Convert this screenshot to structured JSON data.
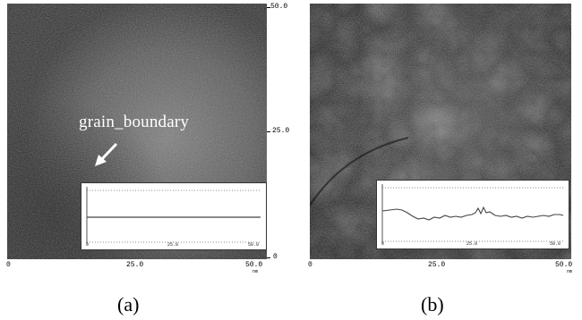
{
  "annotation": {
    "label": "grain_boundary"
  },
  "panel_a": {
    "caption": "(a)",
    "x_ticks": [
      "0",
      "25.0",
      "50.0"
    ],
    "x_unit": "nm",
    "y_ticks": [
      "50.0",
      "25.0",
      "0"
    ],
    "inset_x_ticks": [
      "0",
      "25.0",
      "50.0"
    ]
  },
  "panel_b": {
    "caption": "(b)",
    "x_ticks": [
      "0",
      "25.0",
      "50.0"
    ],
    "x_unit": "nm",
    "inset_x_ticks": [
      "0",
      "25.0",
      "50.0"
    ]
  },
  "colors": {
    "surface_dark": "#2a2a2a",
    "surface_light": "#6e6e6e",
    "profile_line": "#444444",
    "dotted": "#888888"
  }
}
